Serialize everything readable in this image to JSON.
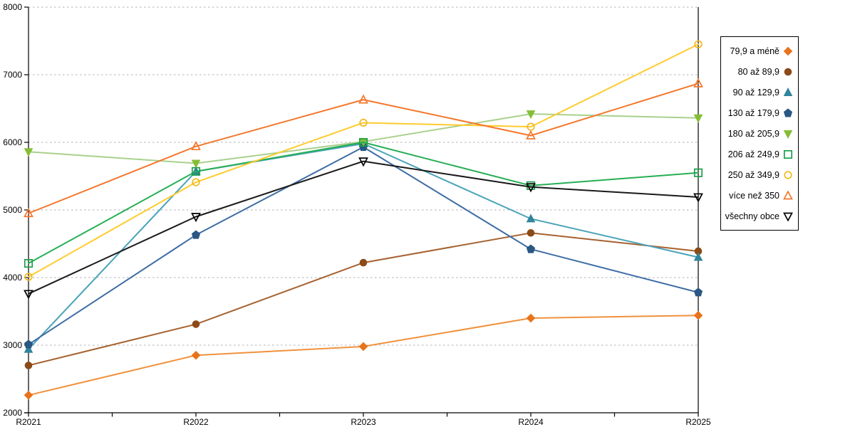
{
  "chart_data": {
    "type": "line",
    "title": "",
    "xlabel": "",
    "ylabel": "",
    "categories": [
      "R2021",
      "R2022",
      "R2023",
      "R2024",
      "R2025"
    ],
    "ylim": [
      2000,
      8000
    ],
    "ytick_interval": 1000,
    "yticks": [
      2000,
      3000,
      4000,
      5000,
      6000,
      7000,
      8000
    ],
    "ytick_labels": [
      "2000",
      "3000",
      "4000",
      "5000",
      "6000",
      "7000",
      "8000"
    ],
    "grid": "horizontal-dotted",
    "gridline_color": "#b0b0b0",
    "axis_color": "#000000",
    "legend_position": "right-outside",
    "series": [
      {
        "name": "79,9 a méně",
        "marker": "diamond",
        "marker_fill": "solid",
        "line_color": "#f0913c",
        "marker_color": "#e8731a",
        "values": [
          2260,
          2850,
          2980,
          3400,
          3440
        ]
      },
      {
        "name": "80 až 89,9",
        "marker": "circle",
        "marker_fill": "solid",
        "line_color": "#a6612f",
        "marker_color": "#8b4a18",
        "values": [
          2700,
          3310,
          4220,
          4660,
          4390
        ]
      },
      {
        "name": "90 až 129,9",
        "marker": "triangle-up",
        "marker_fill": "solid",
        "line_color": "#4aa3b8",
        "marker_color": "#31859c",
        "values": [
          2940,
          5570,
          5980,
          4870,
          4300
        ]
      },
      {
        "name": "130 až 179,9",
        "marker": "pentagon",
        "marker_fill": "solid",
        "line_color": "#3e6da5",
        "marker_color": "#2a5783",
        "values": [
          3010,
          4630,
          5930,
          4420,
          3780
        ]
      },
      {
        "name": "180 až 205,9",
        "marker": "triangle-down",
        "marker_fill": "solid",
        "line_color": "#a9d08d",
        "marker_color": "#85be35",
        "values": [
          5860,
          5690,
          6010,
          6420,
          6360
        ]
      },
      {
        "name": "206 až 249,9",
        "marker": "square",
        "marker_fill": "hollow",
        "line_color": "#27ae55",
        "marker_color": "#1e9e4a",
        "values": [
          4210,
          5570,
          6000,
          5360,
          5550
        ]
      },
      {
        "name": "250 až 349,9",
        "marker": "circle",
        "marker_fill": "hollow",
        "line_color": "#ffcb2f",
        "marker_color": "#f0b81e",
        "values": [
          4010,
          5410,
          6290,
          6230,
          7450
        ]
      },
      {
        "name": "více než 350",
        "marker": "triangle-up",
        "marker_fill": "hollow",
        "line_color": "#f4772b",
        "marker_color": "#f4772b",
        "values": [
          4950,
          5940,
          6630,
          6100,
          6870
        ]
      },
      {
        "name": "všechny obce",
        "marker": "triangle-down",
        "marker_fill": "hollow",
        "line_color": "#1a1a1a",
        "marker_color": "#000000",
        "values": [
          3760,
          4900,
          5720,
          5340,
          5190
        ]
      }
    ]
  }
}
